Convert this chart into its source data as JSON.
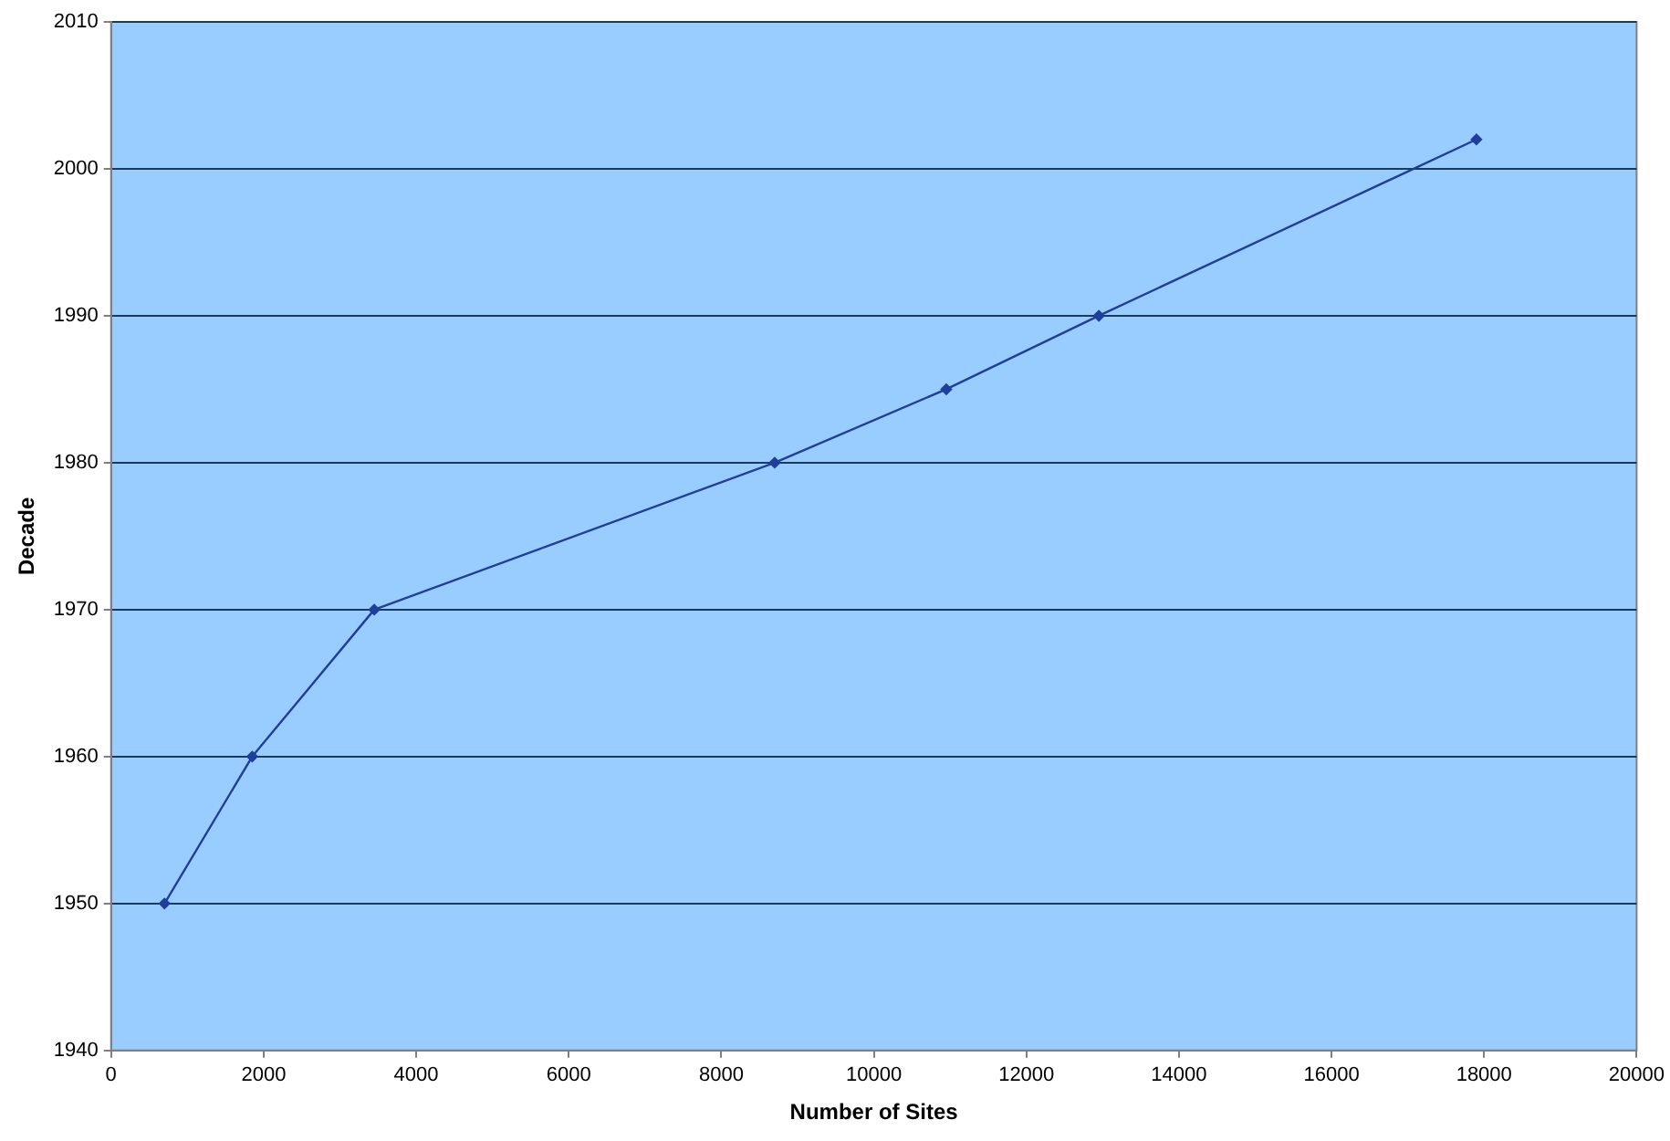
{
  "chart_data": {
    "type": "line",
    "xlabel": "Number of Sites",
    "ylabel": "Decade",
    "x": [
      700,
      1850,
      3450,
      8700,
      10950,
      12950,
      17900
    ],
    "series": [
      {
        "color": "#1f3f9a",
        "values": [
          1950,
          1960,
          1970,
          1980,
          1985,
          1990,
          2002
        ]
      }
    ],
    "xlim": [
      0,
      20000
    ],
    "xticks": [
      0,
      2000,
      4000,
      6000,
      8000,
      10000,
      12000,
      14000,
      16000,
      18000,
      20000
    ],
    "ylim": [
      1940,
      2010
    ],
    "yticks": [
      1940,
      1950,
      1960,
      1970,
      1980,
      1990,
      2000,
      2010
    ],
    "grid": "y",
    "legend": false,
    "marker": "diamond",
    "line_style": "solid"
  }
}
